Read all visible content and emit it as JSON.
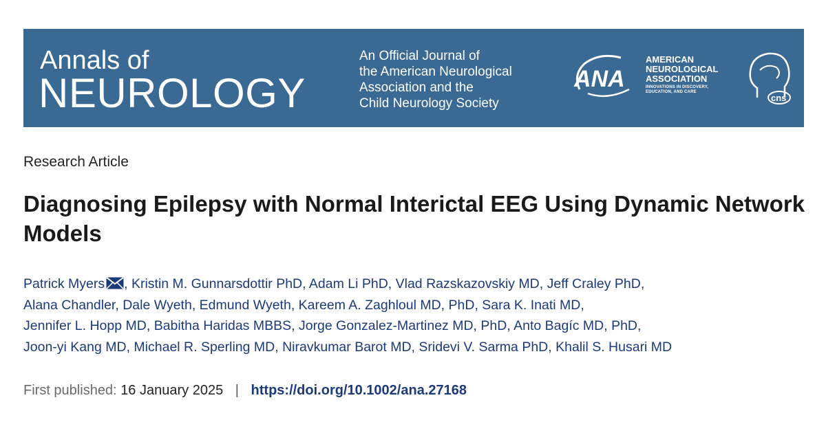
{
  "banner": {
    "journal_line1": "Annals of",
    "journal_line2": "NEUROLOGY",
    "tagline": [
      "An Official Journal of",
      "the American Neurological",
      "Association and the",
      "Child Neurology Society"
    ],
    "ana_logo_text": "ANA",
    "association_lines": [
      "AMERICAN",
      "NEUROLOGICAL",
      "ASSOCIATION"
    ],
    "association_tagline": "INNOVATIONS IN DISCOVERY, EDUCATION, AND CARE",
    "cns_logo_text": "cns",
    "colors": {
      "background": "#3a6a94",
      "text": "#ffffff"
    }
  },
  "article": {
    "type": "Research Article",
    "title": "Diagnosing Epilepsy with Normal Interictal EEG Using Dynamic Network Models",
    "authors": [
      "Patrick Myers",
      "Kristin M. Gunnarsdottir PhD",
      "Adam Li PhD",
      "Vlad Razskazovskiy MD",
      "Jeff Craley PhD",
      "Alana Chandler",
      "Dale Wyeth",
      "Edmund Wyeth",
      "Kareem A. Zaghloul MD, PhD",
      "Sara K. Inati MD",
      "Jennifer L. Hopp MD",
      "Babitha Haridas MBBS",
      "Jorge Gonzalez-Martinez MD, PhD",
      "Anto Bagíc MD, PhD",
      "Joon-yi Kang MD",
      "Michael R. Sperling MD",
      "Niravkumar Barot MD",
      "Sridevi V. Sarma PhD",
      "Khalil S. Husari MD"
    ],
    "corresponding_author_icon": "mail-icon",
    "first_published_label": "First published:",
    "first_published_date": "16 January 2025",
    "separator": "|",
    "doi": "https://doi.org/10.1002/ana.27168",
    "colors": {
      "author_link": "#1b3a7a",
      "title": "#1a1a1a"
    }
  }
}
